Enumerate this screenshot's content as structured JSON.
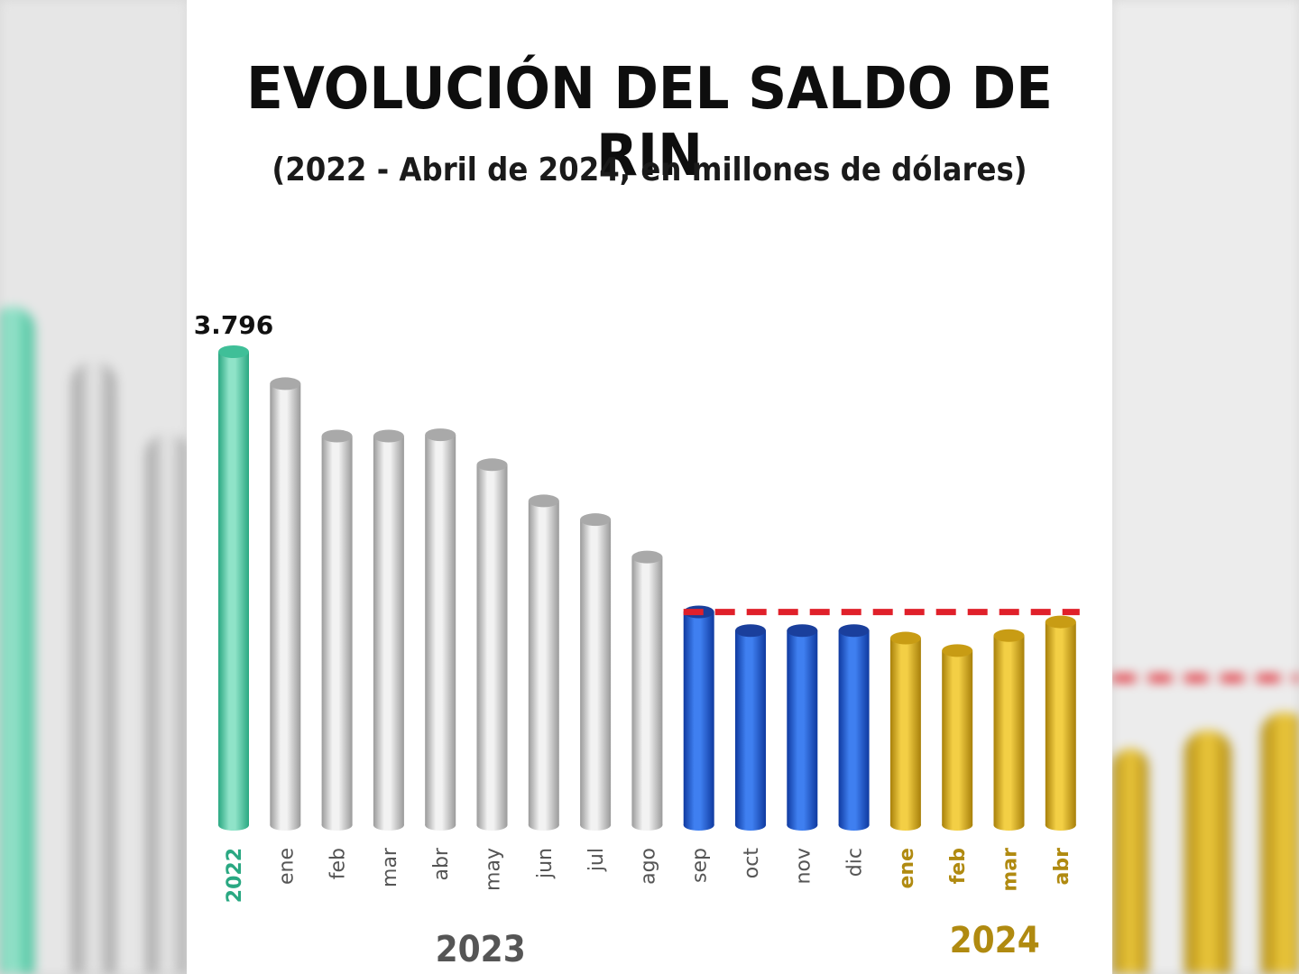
{
  "chart_data": {
    "type": "bar",
    "title": "EVOLUCIÓN DEL SALDO DE RIN",
    "subtitle": "(2022 - Abril de 2024, en millones de dólares)",
    "categories": [
      "2022",
      "ene",
      "feb",
      "mar",
      "abr",
      "may",
      "jun",
      "jul",
      "ago",
      "sep",
      "oct",
      "nov",
      "dic",
      "ene",
      "feb",
      "mar",
      "abr"
    ],
    "groups": [
      "2022",
      "2023",
      "2023",
      "2023",
      "2023",
      "2023",
      "2023",
      "2023",
      "2023",
      "2023",
      "2023",
      "2023",
      "2023",
      "2024",
      "2024",
      "2024",
      "2024"
    ],
    "values": [
      3796,
      3540,
      3120,
      3120,
      3130,
      2890,
      2600,
      2450,
      2150,
      1710,
      1560,
      1560,
      1560,
      1500,
      1400,
      1520,
      1630
    ],
    "data_labels": [
      {
        "category_index": 0,
        "text": "3.796"
      }
    ],
    "group_labels": [
      "2023",
      "2024"
    ],
    "reference_line": {
      "value": 1709,
      "style": "dashed",
      "color": "#e0202a"
    },
    "colors": {
      "2022": "#3fbf98",
      "2023_early": "#c4c4c4",
      "2023_late": "#1f55c9",
      "2024": "#d4a514",
      "label_2022": "#2aa882",
      "label_2023": "#555555",
      "label_2024": "#b08a10"
    },
    "ylim": [
      0,
      3796
    ],
    "grid": false,
    "legend": "none"
  }
}
